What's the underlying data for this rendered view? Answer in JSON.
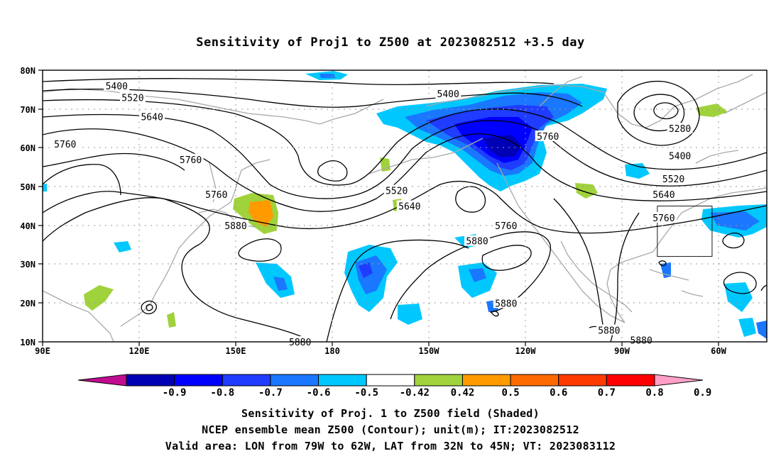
{
  "title": "Sensitivity of Proj1 to Z500 at 2023082512 +3.5 day",
  "axes": {
    "lat_labels": [
      "80N",
      "70N",
      "60N",
      "50N",
      "40N",
      "30N",
      "20N",
      "10N"
    ],
    "lon_labels": [
      "90E",
      "120E",
      "150E",
      "180",
      "150W",
      "120W",
      "90W",
      "60W"
    ]
  },
  "contour_labels": [
    {
      "text": "5400",
      "lon": 113,
      "lat": 76
    },
    {
      "text": "5400",
      "lon": 216,
      "lat": 74
    },
    {
      "text": "5520",
      "lon": 118,
      "lat": 73
    },
    {
      "text": "5640",
      "lon": 124,
      "lat": 68
    },
    {
      "text": "5760",
      "lon": 97,
      "lat": 61
    },
    {
      "text": "5760",
      "lon": 136,
      "lat": 57
    },
    {
      "text": "5760",
      "lon": 247,
      "lat": 63
    },
    {
      "text": "5280",
      "lon": 288,
      "lat": 65
    },
    {
      "text": "5400",
      "lon": 288,
      "lat": 58
    },
    {
      "text": "5520",
      "lon": 286,
      "lat": 52
    },
    {
      "text": "5640",
      "lon": 283,
      "lat": 48
    },
    {
      "text": "5760",
      "lon": 283,
      "lat": 42
    },
    {
      "text": "5520",
      "lon": 200,
      "lat": 49
    },
    {
      "text": "5640",
      "lon": 204,
      "lat": 45
    },
    {
      "text": "5760",
      "lon": 144,
      "lat": 48
    },
    {
      "text": "5880",
      "lon": 150,
      "lat": 40
    },
    {
      "text": "5760",
      "lon": 234,
      "lat": 40
    },
    {
      "text": "5880",
      "lon": 225,
      "lat": 36
    },
    {
      "text": "5880",
      "lon": 234,
      "lat": 20
    },
    {
      "text": "5880",
      "lon": 266,
      "lat": 13
    },
    {
      "text": "5880",
      "lon": 276,
      "lat": 10.5
    },
    {
      "text": "5880",
      "lon": 170,
      "lat": 10
    }
  ],
  "colorbar": {
    "labels": [
      "-0.9",
      "-0.8",
      "-0.7",
      "-0.6",
      "-0.5",
      "-0.42",
      "0.42",
      "0.5",
      "0.6",
      "0.7",
      "0.8",
      "0.9"
    ],
    "colors": [
      "#c10c8f",
      "#0000b4",
      "#0000ff",
      "#1f3cff",
      "#1a77ff",
      "#00c8ff",
      "#ffffff",
      "#a0d23c",
      "#ff9b00",
      "#ff6a00",
      "#ff3a00",
      "#ff0000",
      "#ff9fc8"
    ]
  },
  "valid_area": {
    "lon_from": -79,
    "lon_to": -62,
    "lat_from": 32,
    "lat_to": 45
  },
  "captions": [
    "Sensitivity of Proj. 1 to Z500 field (Shaded)",
    "NCEP ensemble mean Z500 (Contour); unit(m); IT:2023082512",
    "Valid area: LON from 79W to 62W, LAT from 32N to 45N; VT: 2023083112"
  ]
}
